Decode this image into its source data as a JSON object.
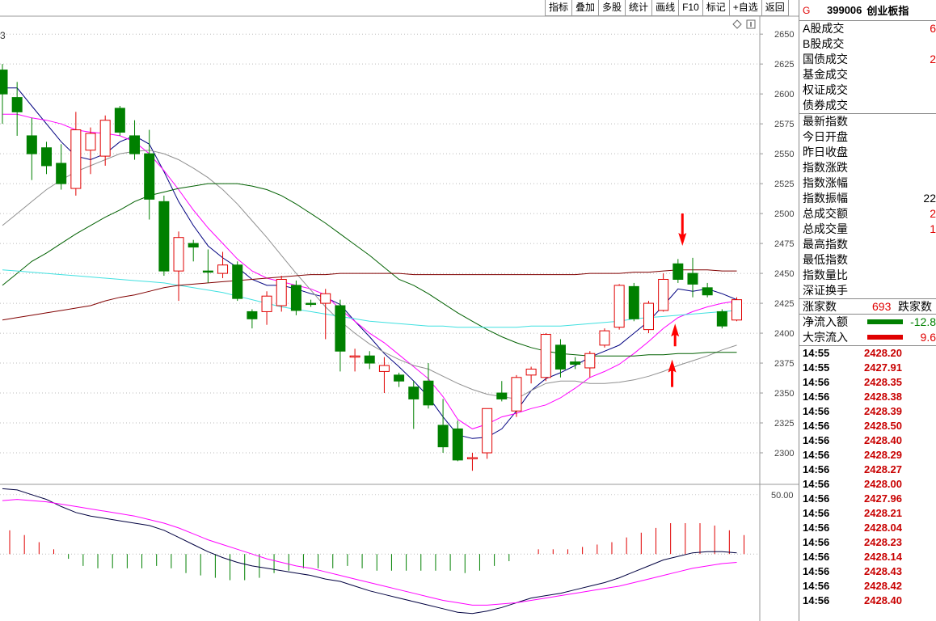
{
  "toolbar": {
    "items": [
      "指标",
      "叠加",
      "多股",
      "统计",
      "画线",
      "F10",
      "标记",
      "+自选",
      "返回"
    ]
  },
  "header": {
    "badge": "G",
    "code": "399006",
    "name": "创业板指"
  },
  "chart_corner_label": "3",
  "panel_rows": [
    {
      "label": "A股成交",
      "value": "6",
      "cls": "red"
    },
    {
      "label": "B股成交",
      "value": "",
      "cls": ""
    },
    {
      "label": "国债成交",
      "value": "2",
      "cls": "red"
    },
    {
      "label": "基金成交",
      "value": "",
      "cls": ""
    },
    {
      "label": "权证成交",
      "value": "",
      "cls": ""
    },
    {
      "label": "债券成交",
      "value": "",
      "cls": ""
    }
  ],
  "index_rows": [
    {
      "label": "最新指数",
      "value": "",
      "cls": ""
    },
    {
      "label": "今日开盘",
      "value": "",
      "cls": ""
    },
    {
      "label": "昨日收盘",
      "value": "",
      "cls": ""
    },
    {
      "label": "指数涨跌",
      "value": "",
      "cls": ""
    },
    {
      "label": "指数涨幅",
      "value": "",
      "cls": ""
    },
    {
      "label": "指数振幅",
      "value": "22",
      "cls": ""
    },
    {
      "label": "总成交额",
      "value": "2",
      "cls": "red"
    },
    {
      "label": "总成交量",
      "value": "1",
      "cls": "red"
    },
    {
      "label": "最高指数",
      "value": "",
      "cls": ""
    },
    {
      "label": "最低指数",
      "value": "",
      "cls": ""
    },
    {
      "label": "指数量比",
      "value": "",
      "cls": ""
    },
    {
      "label": "深证换手",
      "value": "",
      "cls": ""
    }
  ],
  "updown": {
    "up_label": "涨家数",
    "up_value": "693",
    "down_label": "跌家数"
  },
  "flows": [
    {
      "label": "净流入额",
      "value": "-12.8",
      "color": "#008000"
    },
    {
      "label": "大宗流入",
      "value": "9.6",
      "color": "#e00000"
    }
  ],
  "ticks": [
    {
      "time": "14:55",
      "price": "2428.20"
    },
    {
      "time": "14:55",
      "price": "2427.91"
    },
    {
      "time": "14:56",
      "price": "2428.35"
    },
    {
      "time": "14:56",
      "price": "2428.38"
    },
    {
      "time": "14:56",
      "price": "2428.39"
    },
    {
      "time": "14:56",
      "price": "2428.50"
    },
    {
      "time": "14:56",
      "price": "2428.40"
    },
    {
      "time": "14:56",
      "price": "2428.29"
    },
    {
      "time": "14:56",
      "price": "2428.27"
    },
    {
      "time": "14:56",
      "price": "2428.00"
    },
    {
      "time": "14:56",
      "price": "2427.96"
    },
    {
      "time": "14:56",
      "price": "2428.21"
    },
    {
      "time": "14:56",
      "price": "2428.04"
    },
    {
      "time": "14:56",
      "price": "2428.23"
    },
    {
      "time": "14:56",
      "price": "2428.14"
    },
    {
      "time": "14:56",
      "price": "2428.43"
    },
    {
      "time": "14:56",
      "price": "2428.42"
    },
    {
      "time": "14:56",
      "price": "2428.40"
    }
  ],
  "chart_data": {
    "type": "candlestick",
    "ylim": [
      2275,
      2665
    ],
    "yticks": [
      2650,
      2625,
      2600,
      2575,
      2550,
      2525,
      2500,
      2475,
      2450,
      2425,
      2400,
      2375,
      2350,
      2325,
      2300
    ],
    "candles": [
      {
        "o": 2620,
        "h": 2625,
        "l": 2575,
        "c": 2600
      },
      {
        "o": 2597,
        "h": 2610,
        "l": 2565,
        "c": 2585
      },
      {
        "o": 2565,
        "h": 2580,
        "l": 2528,
        "c": 2550
      },
      {
        "o": 2555,
        "h": 2560,
        "l": 2533,
        "c": 2540
      },
      {
        "o": 2542,
        "h": 2558,
        "l": 2520,
        "c": 2525
      },
      {
        "o": 2521,
        "h": 2585,
        "l": 2515,
        "c": 2570
      },
      {
        "o": 2553,
        "h": 2572,
        "l": 2533,
        "c": 2567
      },
      {
        "o": 2548,
        "h": 2582,
        "l": 2540,
        "c": 2578
      },
      {
        "o": 2588,
        "h": 2590,
        "l": 2565,
        "c": 2568
      },
      {
        "o": 2565,
        "h": 2578,
        "l": 2545,
        "c": 2550
      },
      {
        "o": 2550,
        "h": 2570,
        "l": 2495,
        "c": 2512
      },
      {
        "o": 2510,
        "h": 2515,
        "l": 2448,
        "c": 2452
      },
      {
        "o": 2452,
        "h": 2485,
        "l": 2427,
        "c": 2480
      },
      {
        "o": 2475,
        "h": 2478,
        "l": 2460,
        "c": 2472
      },
      {
        "o": 2452,
        "h": 2470,
        "l": 2442,
        "c": 2451
      },
      {
        "o": 2450,
        "h": 2468,
        "l": 2446,
        "c": 2457
      },
      {
        "o": 2457,
        "h": 2460,
        "l": 2427,
        "c": 2429
      },
      {
        "o": 2418,
        "h": 2420,
        "l": 2404,
        "c": 2412
      },
      {
        "o": 2418,
        "h": 2435,
        "l": 2407,
        "c": 2431
      },
      {
        "o": 2423,
        "h": 2448,
        "l": 2418,
        "c": 2445
      },
      {
        "o": 2440,
        "h": 2444,
        "l": 2415,
        "c": 2419
      },
      {
        "o": 2425,
        "h": 2428,
        "l": 2422,
        "c": 2424
      },
      {
        "o": 2425,
        "h": 2437,
        "l": 2395,
        "c": 2433
      },
      {
        "o": 2423,
        "h": 2428,
        "l": 2368,
        "c": 2385
      },
      {
        "o": 2380,
        "h": 2387,
        "l": 2368,
        "c": 2381
      },
      {
        "o": 2381,
        "h": 2385,
        "l": 2370,
        "c": 2375
      },
      {
        "o": 2368,
        "h": 2380,
        "l": 2350,
        "c": 2373
      },
      {
        "o": 2365,
        "h": 2367,
        "l": 2355,
        "c": 2360
      },
      {
        "o": 2355,
        "h": 2360,
        "l": 2320,
        "c": 2345
      },
      {
        "o": 2360,
        "h": 2375,
        "l": 2337,
        "c": 2340
      },
      {
        "o": 2323,
        "h": 2345,
        "l": 2300,
        "c": 2305
      },
      {
        "o": 2320,
        "h": 2327,
        "l": 2293,
        "c": 2294
      },
      {
        "o": 2295,
        "h": 2300,
        "l": 2285,
        "c": 2296
      },
      {
        "o": 2300,
        "h": 2337,
        "l": 2295,
        "c": 2337
      },
      {
        "o": 2350,
        "h": 2360,
        "l": 2343,
        "c": 2345
      },
      {
        "o": 2335,
        "h": 2365,
        "l": 2330,
        "c": 2363
      },
      {
        "o": 2365,
        "h": 2372,
        "l": 2358,
        "c": 2370
      },
      {
        "o": 2363,
        "h": 2400,
        "l": 2360,
        "c": 2399
      },
      {
        "o": 2390,
        "h": 2395,
        "l": 2363,
        "c": 2370
      },
      {
        "o": 2376,
        "h": 2380,
        "l": 2370,
        "c": 2374
      },
      {
        "o": 2371,
        "h": 2385,
        "l": 2363,
        "c": 2383
      },
      {
        "o": 2390,
        "h": 2404,
        "l": 2388,
        "c": 2402
      },
      {
        "o": 2405,
        "h": 2441,
        "l": 2403,
        "c": 2440
      },
      {
        "o": 2439,
        "h": 2442,
        "l": 2410,
        "c": 2412
      },
      {
        "o": 2403,
        "h": 2427,
        "l": 2400,
        "c": 2425
      },
      {
        "o": 2419,
        "h": 2450,
        "l": 2418,
        "c": 2445
      },
      {
        "o": 2458,
        "h": 2462,
        "l": 2442,
        "c": 2445
      },
      {
        "o": 2450,
        "h": 2463,
        "l": 2430,
        "c": 2441
      },
      {
        "o": 2438,
        "h": 2442,
        "l": 2430,
        "c": 2432
      },
      {
        "o": 2418,
        "h": 2420,
        "l": 2404,
        "c": 2406
      },
      {
        "o": 2411,
        "h": 2430,
        "l": 2410,
        "c": 2428
      }
    ],
    "ma_lines": [
      {
        "color": "#000080",
        "values": [
          2605,
          2605,
          2590,
          2575,
          2560,
          2548,
          2545,
          2550,
          2560,
          2565,
          2558,
          2535,
          2510,
          2490,
          2473,
          2463,
          2455,
          2445,
          2440,
          2440,
          2437,
          2433,
          2430,
          2424,
          2410,
          2397,
          2383,
          2372,
          2360,
          2347,
          2330,
          2315,
          2312,
          2313,
          2320,
          2335,
          2352,
          2362,
          2367,
          2373,
          2380,
          2385,
          2390,
          2400,
          2410,
          2423,
          2437,
          2435,
          2437,
          2433,
          2428
        ]
      },
      {
        "color": "#ff00ff",
        "values": [
          2583,
          2583,
          2580,
          2578,
          2575,
          2570,
          2568,
          2567,
          2565,
          2560,
          2550,
          2536,
          2520,
          2503,
          2488,
          2475,
          2462,
          2452,
          2446,
          2443,
          2440,
          2437,
          2432,
          2420,
          2410,
          2400,
          2392,
          2382,
          2372,
          2362,
          2347,
          2328,
          2320,
          2324,
          2330,
          2333,
          2337,
          2340,
          2346,
          2354,
          2363,
          2368,
          2374,
          2383,
          2393,
          2404,
          2413,
          2418,
          2422,
          2425,
          2427
        ]
      },
      {
        "color": "#909090",
        "values": [
          2490,
          2500,
          2510,
          2520,
          2528,
          2535,
          2540,
          2545,
          2550,
          2552,
          2553,
          2550,
          2545,
          2538,
          2530,
          2520,
          2508,
          2494,
          2480,
          2465,
          2450,
          2436,
          2422,
          2410,
          2400,
          2391,
          2384,
          2378,
          2373,
          2370,
          2364,
          2358,
          2353,
          2349,
          2347,
          2345,
          2352,
          2358,
          2360,
          2360,
          2358,
          2358,
          2359,
          2361,
          2364,
          2368,
          2373,
          2377,
          2381,
          2386,
          2390
        ]
      },
      {
        "color": "#006000",
        "values": [
          2440,
          2450,
          2460,
          2467,
          2475,
          2483,
          2490,
          2497,
          2503,
          2510,
          2515,
          2518,
          2521,
          2523,
          2525,
          2525,
          2525,
          2523,
          2520,
          2515,
          2508,
          2500,
          2492,
          2483,
          2474,
          2465,
          2455,
          2445,
          2440,
          2433,
          2425,
          2417,
          2410,
          2403,
          2397,
          2392,
          2388,
          2385,
          2383,
          2382,
          2381,
          2381,
          2381,
          2381,
          2382,
          2382,
          2383,
          2383,
          2384,
          2384,
          2384
        ]
      },
      {
        "color": "#40e0e0",
        "values": [
          2453,
          2452,
          2451,
          2450,
          2449,
          2448,
          2447,
          2446,
          2445,
          2444,
          2443,
          2442,
          2440,
          2438,
          2436,
          2434,
          2431,
          2428,
          2425,
          2422,
          2420,
          2418,
          2416,
          2414,
          2412,
          2410,
          2409,
          2408,
          2407,
          2406,
          2406,
          2405,
          2405,
          2405,
          2405,
          2405,
          2406,
          2406,
          2406,
          2407,
          2408,
          2409,
          2410,
          2412,
          2413,
          2414,
          2415,
          2416,
          2417,
          2418,
          2419
        ]
      },
      {
        "color": "#800000",
        "values": [
          2411,
          2413,
          2415,
          2417,
          2419,
          2421,
          2423,
          2427,
          2430,
          2432,
          2435,
          2438,
          2440,
          2441,
          2442,
          2443,
          2444,
          2445,
          2446,
          2447,
          2448,
          2449,
          2449,
          2450,
          2450,
          2450,
          2450,
          2450,
          2449,
          2449,
          2449,
          2449,
          2449,
          2449,
          2449,
          2449,
          2449,
          2449,
          2449,
          2449,
          2450,
          2450,
          2450,
          2451,
          2451,
          2452,
          2453,
          2453,
          2453,
          2452,
          2452
        ]
      }
    ],
    "arrows": [
      {
        "dir": "down",
        "bar": 46.3,
        "value": 2473
      },
      {
        "dir": "up",
        "bar": 45.6,
        "value": 2378
      },
      {
        "dir": "up",
        "bar": 45.8,
        "value": 2408
      }
    ],
    "macd": {
      "ylabel_value": "50.00",
      "ylim": [
        -55,
        58
      ],
      "dif": [
        55,
        54,
        50,
        46,
        40,
        35,
        32,
        30,
        28,
        26,
        24,
        20,
        14,
        8,
        2,
        -3,
        -7,
        -10,
        -12,
        -14,
        -16,
        -18,
        -21,
        -23,
        -27,
        -31,
        -34,
        -37,
        -40,
        -43,
        -46,
        -49,
        -50,
        -48,
        -45,
        -41,
        -37,
        -35,
        -33,
        -30,
        -27,
        -24,
        -20,
        -15,
        -10,
        -5,
        -2,
        1,
        2,
        2,
        1
      ],
      "dea": [
        45,
        46,
        45,
        44,
        42,
        40,
        38,
        36,
        34,
        32,
        29,
        26,
        22,
        17,
        12,
        8,
        4,
        0,
        -4,
        -7,
        -10,
        -12,
        -15,
        -18,
        -21,
        -24,
        -27,
        -30,
        -33,
        -36,
        -39,
        -41,
        -43,
        -43,
        -42,
        -41,
        -39,
        -37,
        -35,
        -33,
        -31,
        -29,
        -27,
        -24,
        -21,
        -18,
        -15,
        -12,
        -10,
        -8,
        -7
      ],
      "hist": [
        20,
        16,
        10,
        4,
        -4,
        -10,
        -12,
        -12,
        -12,
        -12,
        -10,
        -12,
        -16,
        -18,
        -20,
        -22,
        -22,
        -20,
        -16,
        -14,
        -12,
        -12,
        -12,
        -10,
        -12,
        -14,
        -14,
        -14,
        -14,
        -14,
        -14,
        -16,
        -14,
        -10,
        -6,
        0,
        4,
        4,
        4,
        6,
        8,
        10,
        14,
        18,
        22,
        26,
        26,
        26,
        24,
        20,
        16
      ]
    }
  }
}
